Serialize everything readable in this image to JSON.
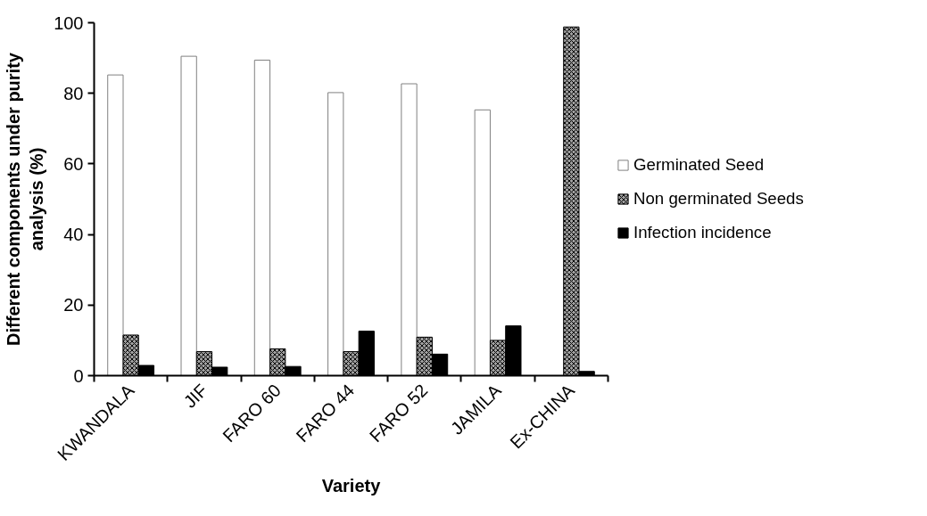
{
  "chart_data": {
    "type": "bar",
    "xlabel": "Variety",
    "ylabel": "Different components under purity\nanalysis (%)",
    "categories": [
      "KWANDALA",
      "JIF",
      "FARO 60",
      "FARO 44",
      "FARO 52",
      "JAMILA",
      "Ex-CHINA"
    ],
    "series": [
      {
        "name": "Germinated Seed",
        "color": "#ffffff",
        "values": [
          85.2,
          90.5,
          89.4,
          80.2,
          82.7,
          75.3,
          0
        ]
      },
      {
        "name": "Non germinated Seeds",
        "color": "#a0a0a0",
        "values": [
          11.5,
          6.8,
          7.6,
          6.8,
          10.9,
          10.0,
          98.8
        ]
      },
      {
        "name": "Infection incidence",
        "color": "#000000",
        "values": [
          2.9,
          2.4,
          2.6,
          12.6,
          6.1,
          14.1,
          1.2
        ]
      }
    ],
    "ylim": [
      0,
      100
    ],
    "yticks": [
      0,
      20,
      40,
      60,
      80,
      100
    ],
    "grid": false,
    "legend": "right"
  }
}
